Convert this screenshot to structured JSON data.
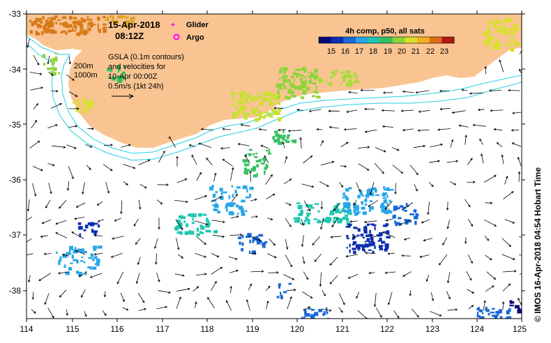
{
  "header": {
    "date": "15-Apr-2018",
    "time": "08:12Z"
  },
  "legend_markers": {
    "glider": "Glider",
    "argo": "Argo",
    "glider_color": "#ff00ff",
    "argo_color": "#ff00ff"
  },
  "notes": {
    "line1": "GSLA (0.1m contours)",
    "line2": "and velocities for",
    "line3": "10-Apr 00:00Z",
    "line4": "0.5m/s (1kt 24h)",
    "contour_200": "200m",
    "contour_1000": "1000m"
  },
  "colorbar": {
    "title": "4h comp, p50, all sats",
    "ticks": [
      "15",
      "16",
      "17",
      "18",
      "19",
      "20",
      "21",
      "22",
      "23"
    ],
    "colors": [
      "#08087a",
      "#0a2fb0",
      "#1a68d8",
      "#27a6e8",
      "#1ec7b0",
      "#35c060",
      "#8fd43a",
      "#d8e02a",
      "#f0b020",
      "#e06a1a",
      "#b01a10"
    ]
  },
  "axes": {
    "x_ticks": [
      "114",
      "115",
      "116",
      "117",
      "118",
      "119",
      "120",
      "121",
      "122",
      "123",
      "124",
      "125"
    ],
    "y_ticks": [
      "-33",
      "-34",
      "-35",
      "-36",
      "-37",
      "-38"
    ]
  },
  "colors": {
    "land": "#f9c492",
    "contour": "#22d0e0",
    "arrow": "#000000"
  },
  "credit": "© IMOS 16-Apr-2018 04:54 Hobart Time"
}
